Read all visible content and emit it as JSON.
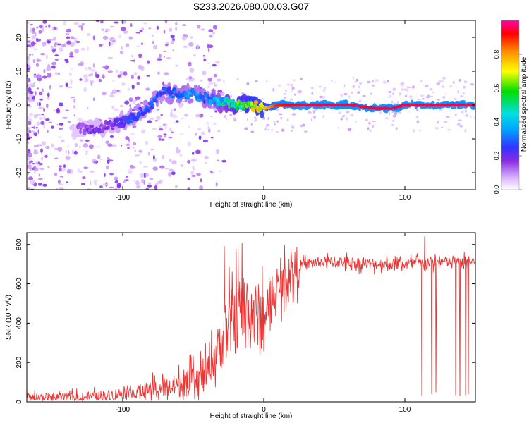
{
  "chart_data": [
    {
      "type": "heatmap",
      "title": "S233.2026.080.00.03.G07",
      "xlabel": "Height of straight line (km)",
      "ylabel": "Frequency (Hz)",
      "xlim": [
        -168,
        150
      ],
      "ylim": [
        -25,
        25
      ],
      "xticks": [
        -100,
        0,
        100
      ],
      "yticks": [
        -20,
        -10,
        0,
        10,
        20
      ],
      "colorbar": {
        "label": "Normalized spectral amplitude",
        "range": [
          0,
          1
        ],
        "ticks": [
          "0.0",
          "0.2",
          "0.4",
          "0.6",
          "0.8"
        ],
        "colors": [
          "#ffffff",
          "#d9b3ff",
          "#8a2be2",
          "#3333ff",
          "#00a0ff",
          "#00e0e0",
          "#00dd00",
          "#ffff00",
          "#ff8800",
          "#ff0000",
          "#ff00aa"
        ]
      },
      "ridge": {
        "x": [
          -130,
          -120,
          -110,
          -100,
          -90,
          -80,
          -72,
          -60,
          -50,
          -40,
          -30,
          -20,
          -10,
          0,
          10,
          30,
          60,
          80,
          90,
          100,
          120,
          148
        ],
        "freq": [
          -7,
          -7,
          -6,
          -5,
          -3,
          0,
          4,
          3,
          3,
          2,
          1,
          0,
          0,
          -1,
          0,
          0,
          0,
          -1,
          -1,
          0,
          0,
          0
        ],
        "amplitude": [
          0.15,
          0.2,
          0.2,
          0.25,
          0.3,
          0.3,
          0.3,
          0.35,
          0.35,
          0.35,
          0.45,
          0.6,
          0.7,
          0.75,
          0.9,
          0.95,
          0.95,
          0.95,
          0.95,
          0.95,
          0.95,
          0.95
        ]
      }
    },
    {
      "type": "line",
      "title": "",
      "xlabel": "Height of straight line (km)",
      "ylabel": "SNR (10 * v/v)",
      "xlim": [
        -168,
        150
      ],
      "ylim": [
        0,
        860
      ],
      "xticks": [
        -100,
        0,
        100
      ],
      "yticks": [
        0,
        200,
        400,
        600,
        800
      ],
      "series": [
        {
          "name": "SNR",
          "color": "#ee3333",
          "x": [
            -168,
            -150,
            -130,
            -110,
            -90,
            -70,
            -55,
            -45,
            -40,
            -35,
            -30,
            -25,
            -20,
            -15,
            -10,
            -5,
            0,
            5,
            10,
            15,
            20,
            25,
            30,
            40,
            60,
            80,
            100,
            110,
            120,
            130,
            140,
            150
          ],
          "y": [
            20,
            22,
            25,
            35,
            50,
            70,
            90,
            120,
            160,
            230,
            300,
            380,
            430,
            470,
            460,
            420,
            420,
            500,
            570,
            620,
            660,
            690,
            700,
            710,
            710,
            700,
            700,
            705,
            710,
            710,
            710,
            715
          ]
        }
      ],
      "dropouts": [
        {
          "x": 112,
          "y": 30
        },
        {
          "x": 119,
          "y": 40
        },
        {
          "x": 122,
          "y": 50
        },
        {
          "x": 136,
          "y": 35
        },
        {
          "x": 139,
          "y": 30
        },
        {
          "x": 143,
          "y": 35
        },
        {
          "x": 145,
          "y": 40
        }
      ],
      "spikes": [
        {
          "x": -28,
          "y": 790
        },
        {
          "x": -18,
          "y": 600
        },
        {
          "x": 114,
          "y": 840
        }
      ]
    }
  ]
}
